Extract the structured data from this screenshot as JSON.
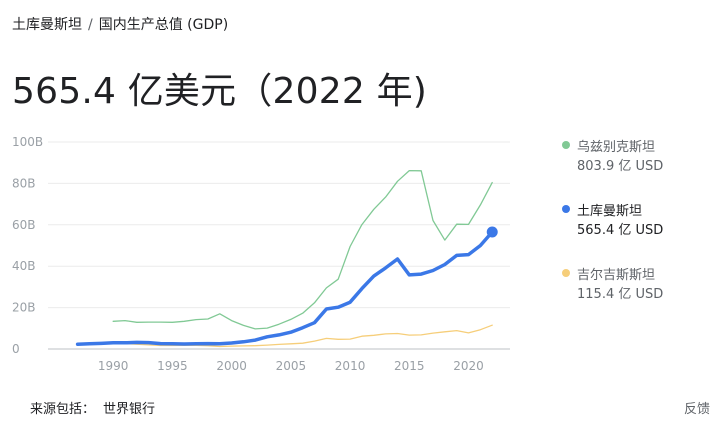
{
  "breadcrumb": {
    "parent": "土库曼斯坦",
    "separator": "/",
    "current": "国内生产总值 (GDP)"
  },
  "headline": "565.4 亿美元（2022 年)",
  "legend": [
    {
      "name": "乌兹别克斯坦",
      "value": "803.9 亿 USD",
      "color": "#81c995"
    },
    {
      "name": "土库曼斯坦",
      "value": "565.4 亿 USD",
      "color": "#3b78e7"
    },
    {
      "name": "吉尔吉斯斯坦",
      "value": "115.4 亿 USD",
      "color": "#f6ce7a"
    }
  ],
  "footer": {
    "source_label": "来源包括：",
    "source_name": "世界银行",
    "feedback": "反馈"
  },
  "chart_data": {
    "type": "line",
    "title": "",
    "xlabel": "",
    "ylabel": "",
    "xlim": [
      1984.5,
      2023.5
    ],
    "ylim": [
      0,
      100
    ],
    "y_ticks": [
      {
        "value": 0,
        "label": "0"
      },
      {
        "value": 20,
        "label": "20B"
      },
      {
        "value": 40,
        "label": "40B"
      },
      {
        "value": 60,
        "label": "60B"
      },
      {
        "value": 80,
        "label": "80B"
      },
      {
        "value": 100,
        "label": "100B"
      }
    ],
    "x_ticks": [
      {
        "value": 1990,
        "label": "1990"
      },
      {
        "value": 1995,
        "label": "1995"
      },
      {
        "value": 2000,
        "label": "2000"
      },
      {
        "value": 2005,
        "label": "2005"
      },
      {
        "value": 2010,
        "label": "2010"
      },
      {
        "value": 2015,
        "label": "2015"
      },
      {
        "value": 2020,
        "label": "2020"
      }
    ],
    "grid": true,
    "legend_position": "right",
    "series": [
      {
        "name": "乌兹别克斯坦",
        "color": "#81c995",
        "width": 1.3,
        "x": [
          1990,
          1991,
          1992,
          1993,
          1994,
          1995,
          1996,
          1997,
          1998,
          1999,
          2000,
          2001,
          2002,
          2003,
          2004,
          2005,
          2006,
          2007,
          2008,
          2009,
          2010,
          2011,
          2012,
          2013,
          2014,
          2015,
          2016,
          2017,
          2018,
          2019,
          2020,
          2021,
          2022
        ],
        "y": [
          13.4,
          13.7,
          12.9,
          13.0,
          13.0,
          12.9,
          13.4,
          14.2,
          14.5,
          17.0,
          13.7,
          11.4,
          9.7,
          10.1,
          12.0,
          14.3,
          17.3,
          22.3,
          29.5,
          33.7,
          49.5,
          60.1,
          67.5,
          73.4,
          81.0,
          86.2,
          86.1,
          62.1,
          52.6,
          60.3,
          60.2,
          69.6,
          80.4
        ]
      },
      {
        "name": "吉尔吉斯斯坦",
        "color": "#f6ce7a",
        "width": 1.3,
        "x": [
          1990,
          1991,
          1992,
          1993,
          1994,
          1995,
          1996,
          1997,
          1998,
          1999,
          2000,
          2001,
          2002,
          2003,
          2004,
          2005,
          2006,
          2007,
          2008,
          2009,
          2010,
          2011,
          2012,
          2013,
          2014,
          2015,
          2016,
          2017,
          2018,
          2019,
          2020,
          2021,
          2022
        ],
        "y": [
          2.7,
          2.6,
          2.3,
          2.0,
          1.7,
          1.7,
          1.8,
          1.8,
          1.6,
          1.2,
          1.4,
          1.5,
          1.6,
          1.9,
          2.2,
          2.5,
          2.8,
          3.8,
          5.1,
          4.7,
          4.8,
          6.2,
          6.6,
          7.3,
          7.5,
          6.7,
          6.8,
          7.7,
          8.3,
          8.9,
          7.8,
          9.3,
          11.5
        ]
      },
      {
        "name": "土库曼斯坦",
        "color": "#3b78e7",
        "width": 3.5,
        "x": [
          1987,
          1988,
          1989,
          1990,
          1991,
          1992,
          1993,
          1994,
          1995,
          1996,
          1997,
          1998,
          1999,
          2000,
          2001,
          2002,
          2003,
          2004,
          2005,
          2006,
          2007,
          2008,
          2009,
          2010,
          2011,
          2012,
          2013,
          2014,
          2015,
          2016,
          2017,
          2018,
          2019,
          2020,
          2021,
          2022
        ],
        "y": [
          2.3,
          2.5,
          2.7,
          3.0,
          3.0,
          3.2,
          3.1,
          2.6,
          2.5,
          2.4,
          2.5,
          2.6,
          2.5,
          2.9,
          3.5,
          4.3,
          5.9,
          6.8,
          8.1,
          10.3,
          12.7,
          19.3,
          20.2,
          22.6,
          29.2,
          35.2,
          39.2,
          43.5,
          35.8,
          36.2,
          37.9,
          40.8,
          45.2,
          45.6,
          50.0,
          56.5
        ]
      }
    ]
  }
}
